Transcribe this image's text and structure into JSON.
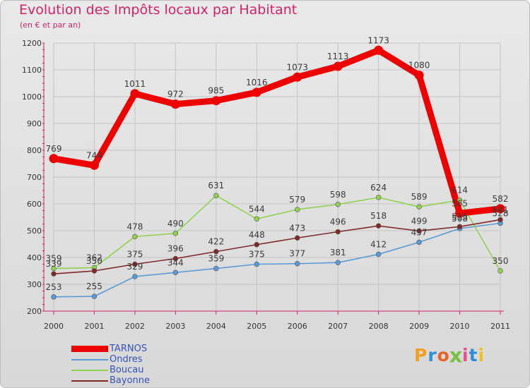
{
  "header": {
    "title": "Evolution des Impôts locaux par Habitant",
    "subtitle": "(en € et par an)"
  },
  "colors": {
    "background": "#e0e0e0",
    "title": "#d2226a",
    "axis": "#d2226a",
    "tick_text": "#333333",
    "legend_text": "#3553b8"
  },
  "logo": {
    "text": "Proxiti",
    "letter_colors": [
      "#f0a020",
      "#2d8fd6",
      "#e8622a",
      "#7ac142",
      "#e84f8b",
      "#2d8fd6",
      "#f0c020"
    ]
  },
  "chart_data": {
    "type": "line",
    "title": "Evolution des Impôts locaux par Habitant",
    "subtitle": "(en € et par an)",
    "xlabel": "",
    "ylabel": "",
    "x": [
      "2000",
      "2001",
      "2002",
      "2003",
      "2004",
      "2005",
      "2006",
      "2007",
      "2008",
      "2009",
      "2010",
      "2011"
    ],
    "ylim": [
      200,
      1200
    ],
    "yticks": [
      "200",
      "300",
      "400",
      "500",
      "600",
      "700",
      "800",
      "900",
      "1000",
      "1100",
      "1200"
    ],
    "grid": true,
    "legend_position": "bottom-left",
    "series": [
      {
        "name": "TARNOS",
        "color": "#ee0000",
        "values": [
          769,
          744,
          1011,
          972,
          985,
          1016,
          1073,
          1113,
          1173,
          1080,
          565,
          582
        ],
        "labels": [
          "769",
          "744",
          "1011",
          "972",
          "985",
          "1016",
          "1073",
          "1113",
          "1173",
          "1080",
          "565",
          "582"
        ]
      },
      {
        "name": "Ondres",
        "color": "#5b9bd5",
        "values": [
          253,
          255,
          329,
          344,
          359,
          375,
          377,
          381,
          412,
          457,
          508,
          528
        ],
        "labels": [
          "253",
          "255",
          "329",
          "344",
          "359",
          "375",
          "377",
          "381",
          "412",
          "457",
          "508",
          "528"
        ]
      },
      {
        "name": "Boucau",
        "color": "#92d050",
        "values": [
          359,
          362,
          478,
          490,
          631,
          544,
          579,
          598,
          624,
          589,
          614,
          350
        ],
        "labels": [
          "359",
          "362",
          "478",
          "490",
          "631",
          "544",
          "579",
          "598",
          "624",
          "589",
          "614",
          "350"
        ]
      },
      {
        "name": "Bayonne",
        "color": "#7f2a2a",
        "values": [
          339,
          350,
          375,
          396,
          422,
          448,
          473,
          496,
          518,
          499,
          515,
          541
        ],
        "labels": [
          "339",
          "350",
          "375",
          "396",
          "422",
          "448",
          "473",
          "496",
          "518",
          "499",
          "515",
          "541"
        ]
      }
    ]
  }
}
